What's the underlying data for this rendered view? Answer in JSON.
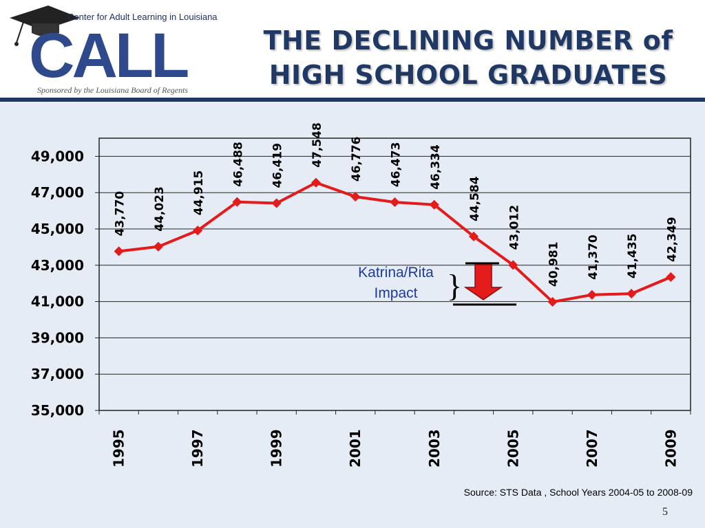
{
  "header": {
    "org_name": "Center for Adult Learning in Louisiana",
    "logo_text": "CALL",
    "sponsor": "Sponsored by the Louisiana Board of Regents",
    "title_line1": "THE DECLINING NUMBER of",
    "title_line2": "HIGH SCHOOL GRADUATES"
  },
  "annotation": {
    "line1": "Katrina/Rita",
    "line2": "Impact"
  },
  "footer": {
    "source": "Source: STS Data , School Years 2004-05 to 2008-09",
    "page_number": "5"
  },
  "colors": {
    "title": "#1f3864",
    "series": "#e31b1b",
    "background": "#e6ecf5",
    "annotation_text": "#1f3a9a"
  },
  "chart_data": {
    "type": "line",
    "x": [
      1995,
      1996,
      1997,
      1998,
      1999,
      2000,
      2001,
      2002,
      2003,
      2004,
      2005,
      2006,
      2007,
      2008,
      2009
    ],
    "x_tick_labels": [
      "1995",
      "1997",
      "1999",
      "2001",
      "2003",
      "2005",
      "2007",
      "2009"
    ],
    "series": [
      {
        "values": [
          43770,
          44023,
          44915,
          46488,
          46419,
          47548,
          46776,
          46473,
          46334,
          44584,
          43012,
          40981,
          41370,
          41435,
          42349
        ],
        "labels": [
          "43,770",
          "44,023",
          "44,915",
          "46,488",
          "46,419",
          "47,548",
          "46,776",
          "46,473",
          "46,334",
          "44,584",
          "43,012",
          "40,981",
          "41,370",
          "41,435",
          "42,349"
        ]
      }
    ],
    "y_ticks": [
      35000,
      37000,
      39000,
      41000,
      43000,
      45000,
      47000,
      49000
    ],
    "y_tick_labels": [
      "35,000",
      "37,000",
      "39,000",
      "41,000",
      "43,000",
      "45,000",
      "47,000",
      "49,000"
    ],
    "ylim": [
      35000,
      50000
    ],
    "grid": true,
    "legend": "none"
  }
}
